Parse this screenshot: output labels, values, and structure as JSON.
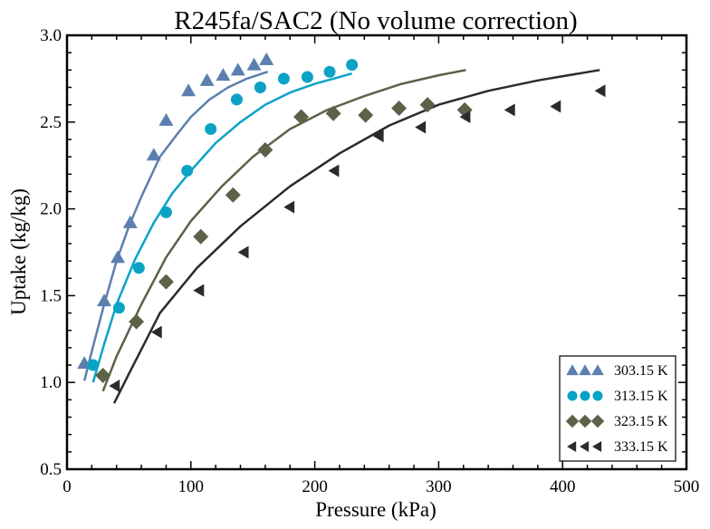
{
  "chart_data": {
    "type": "scatter",
    "title": "R245fa/SAC2 (No volume correction)",
    "xlabel": "Pressure (kPa)",
    "ylabel": "Uptake (kg/kg)",
    "xlim": [
      0,
      500
    ],
    "ylim": [
      0.5,
      3.0
    ],
    "xticks": [
      0,
      100,
      200,
      300,
      400,
      500
    ],
    "yticks": [
      0.5,
      1.0,
      1.5,
      2.0,
      2.5,
      3.0
    ],
    "xtick_labels": [
      "0",
      "100",
      "200",
      "300",
      "400",
      "500"
    ],
    "ytick_labels": [
      "0.5",
      "1.0",
      "1.5",
      "2.0",
      "2.5",
      "3.0"
    ],
    "grid": false,
    "legend_position": "bottom-right",
    "series": [
      {
        "name": "303.15 K",
        "marker": "triangle-up",
        "color": "#5b7fae",
        "points": [
          [
            14,
            1.11
          ],
          [
            30,
            1.47
          ],
          [
            41,
            1.72
          ],
          [
            51,
            1.92
          ],
          [
            70,
            2.31
          ],
          [
            80,
            2.51
          ],
          [
            98,
            2.68
          ],
          [
            113,
            2.74
          ],
          [
            126,
            2.77
          ],
          [
            138,
            2.8
          ],
          [
            151,
            2.83
          ],
          [
            161,
            2.86
          ]
        ],
        "fit": [
          [
            14,
            1.01
          ],
          [
            20,
            1.18
          ],
          [
            30,
            1.45
          ],
          [
            40,
            1.7
          ],
          [
            50,
            1.9
          ],
          [
            60,
            2.07
          ],
          [
            75,
            2.3
          ],
          [
            90,
            2.44
          ],
          [
            100,
            2.53
          ],
          [
            115,
            2.63
          ],
          [
            130,
            2.7
          ],
          [
            145,
            2.75
          ],
          [
            162,
            2.79
          ]
        ]
      },
      {
        "name": "313.15 K",
        "marker": "circle",
        "color": "#0aa3c6",
        "points": [
          [
            21,
            1.1
          ],
          [
            42,
            1.43
          ],
          [
            58,
            1.66
          ],
          [
            80,
            1.98
          ],
          [
            97,
            2.22
          ],
          [
            116,
            2.46
          ],
          [
            137,
            2.63
          ],
          [
            156,
            2.7
          ],
          [
            175,
            2.75
          ],
          [
            194,
            2.76
          ],
          [
            212,
            2.79
          ],
          [
            230,
            2.83
          ]
        ],
        "fit": [
          [
            21,
            1.0
          ],
          [
            30,
            1.22
          ],
          [
            40,
            1.45
          ],
          [
            55,
            1.71
          ],
          [
            70,
            1.92
          ],
          [
            85,
            2.09
          ],
          [
            100,
            2.22
          ],
          [
            120,
            2.38
          ],
          [
            140,
            2.5
          ],
          [
            160,
            2.6
          ],
          [
            180,
            2.67
          ],
          [
            200,
            2.72
          ],
          [
            230,
            2.78
          ]
        ]
      },
      {
        "name": "323.15 K",
        "marker": "diamond",
        "color": "#5b6248",
        "points": [
          [
            29,
            1.04
          ],
          [
            56,
            1.35
          ],
          [
            80,
            1.58
          ],
          [
            108,
            1.84
          ],
          [
            134,
            2.08
          ],
          [
            160,
            2.34
          ],
          [
            189,
            2.53
          ],
          [
            215,
            2.55
          ],
          [
            241,
            2.54
          ],
          [
            268,
            2.58
          ],
          [
            291,
            2.6
          ],
          [
            321,
            2.57
          ]
        ],
        "fit": [
          [
            29,
            0.95
          ],
          [
            40,
            1.15
          ],
          [
            60,
            1.45
          ],
          [
            80,
            1.72
          ],
          [
            100,
            1.93
          ],
          [
            125,
            2.13
          ],
          [
            150,
            2.3
          ],
          [
            180,
            2.46
          ],
          [
            210,
            2.57
          ],
          [
            240,
            2.65
          ],
          [
            270,
            2.72
          ],
          [
            300,
            2.77
          ],
          [
            322,
            2.8
          ]
        ]
      },
      {
        "name": "333.15 K",
        "marker": "triangle-left",
        "color": "#2b2b2b",
        "points": [
          [
            39,
            0.98
          ],
          [
            73,
            1.29
          ],
          [
            107,
            1.53
          ],
          [
            143,
            1.75
          ],
          [
            180,
            2.01
          ],
          [
            216,
            2.22
          ],
          [
            252,
            2.42
          ],
          [
            286,
            2.47
          ],
          [
            322,
            2.53
          ],
          [
            358,
            2.57
          ],
          [
            395,
            2.59
          ],
          [
            431,
            2.68
          ]
        ],
        "fit": [
          [
            38,
            0.88
          ],
          [
            50,
            1.05
          ],
          [
            75,
            1.4
          ],
          [
            105,
            1.66
          ],
          [
            140,
            1.9
          ],
          [
            180,
            2.13
          ],
          [
            220,
            2.32
          ],
          [
            260,
            2.48
          ],
          [
            300,
            2.6
          ],
          [
            340,
            2.68
          ],
          [
            380,
            2.74
          ],
          [
            430,
            2.8
          ]
        ]
      }
    ]
  }
}
